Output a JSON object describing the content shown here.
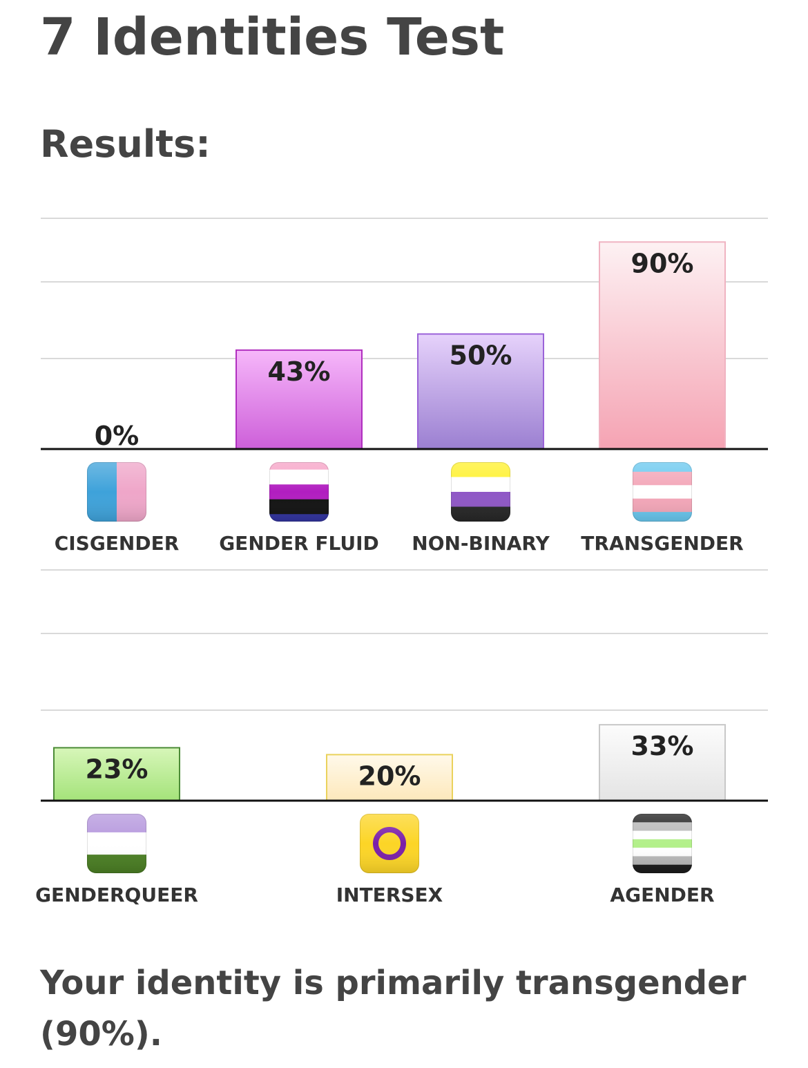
{
  "header": {
    "title": "7 Identities Test",
    "results_label": "Results:"
  },
  "summary": {
    "text": "Your identity is primarily transgender (90%)."
  },
  "chart_data": [
    {
      "type": "bar",
      "categories": [
        "CISGENDER",
        "GENDER FLUID",
        "NON-BINARY",
        "TRANSGENDER"
      ],
      "values": [
        0,
        43,
        50,
        90
      ],
      "value_labels": [
        "0%",
        "43%",
        "50%",
        "90%"
      ],
      "icons": [
        "cisgender-flag-icon",
        "genderfluid-flag-icon",
        "nonbinary-flag-icon",
        "transgender-flag-icon"
      ],
      "bar_colors": [
        {
          "top": "#9ecbee",
          "bottom": "#e7a1c2",
          "stroke": "#999999"
        },
        {
          "top": "#f6b7fa",
          "bottom": "#cd5fd9",
          "stroke": "#b02fbf"
        },
        {
          "top": "#e6d2fb",
          "bottom": "#9b7fd1",
          "stroke": "#9a62d8"
        },
        {
          "top": "#fdf1f3",
          "bottom": "#f5a3b3",
          "stroke": "#f0b3c1"
        }
      ],
      "ylim": [
        0,
        100
      ],
      "grid": true,
      "ylabel": "",
      "xlabel": ""
    },
    {
      "type": "bar",
      "categories": [
        "GENDERQUEER",
        "INTERSEX",
        "AGENDER"
      ],
      "values": [
        23,
        20,
        33
      ],
      "value_labels": [
        "23%",
        "20%",
        "33%"
      ],
      "icons": [
        "genderqueer-flag-icon",
        "intersex-flag-icon",
        "agender-flag-icon"
      ],
      "bar_colors": [
        {
          "top": "#d7f6b9",
          "bottom": "#a4e37a",
          "stroke": "#4b8b36"
        },
        {
          "top": "#fff9ea",
          "bottom": "#fde8bb",
          "stroke": "#ead25c"
        },
        {
          "top": "#fcfcfc",
          "bottom": "#e4e4e4",
          "stroke": "#c8c8c8"
        }
      ],
      "ylim": [
        0,
        100
      ],
      "grid": true,
      "ylabel": "",
      "xlabel": ""
    }
  ]
}
